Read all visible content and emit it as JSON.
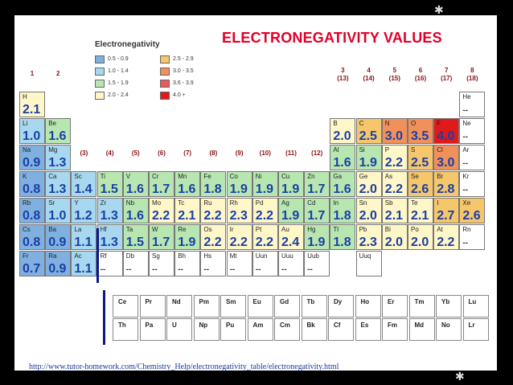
{
  "title": "ELECTRONEGATIVITY VALUES",
  "legend": {
    "title": "Electronegativity",
    "items": [
      {
        "label": "0.5 - 0.9",
        "color": "#7fb0e0"
      },
      {
        "label": "1.0 - 1.4",
        "color": "#a8d8f0"
      },
      {
        "label": "1.5 - 1.9",
        "color": "#b8e6b0"
      },
      {
        "label": "2.0 - 2.4",
        "color": "#fff7c8"
      },
      {
        "label": "2.5 - 2.9",
        "color": "#f6c66a"
      },
      {
        "label": "3.0 - 3.5",
        "color": "#f0905a"
      },
      {
        "label": "3.6 - 3.9",
        "color": "#e85a5a"
      },
      {
        "label": "4.0 +",
        "color": "#e01a1a"
      }
    ]
  },
  "groups_top": [
    "1",
    "2"
  ],
  "groups_main": [
    {
      "a": "3",
      "b": "(13)"
    },
    {
      "a": "4",
      "b": "(14)"
    },
    {
      "a": "5",
      "b": "(15)"
    },
    {
      "a": "6",
      "b": "(16)"
    },
    {
      "a": "7",
      "b": "(17)"
    },
    {
      "a": "8",
      "b": "(18)"
    }
  ],
  "groups_transition": [
    "(3)",
    "(4)",
    "(5)",
    "(6)",
    "(7)",
    "(8)",
    "(9)",
    "(10)",
    "(11)",
    "(12)"
  ],
  "elements": [
    {
      "s": "H",
      "v": "2.1",
      "r": 0,
      "c": 0,
      "k": 3
    },
    {
      "s": "He",
      "v": "--",
      "r": 0,
      "c": 17,
      "k": 9
    },
    {
      "s": "Li",
      "v": "1.0",
      "r": 1,
      "c": 0,
      "k": 1
    },
    {
      "s": "Be",
      "v": "1.6",
      "r": 1,
      "c": 1,
      "k": 2
    },
    {
      "s": "B",
      "v": "2.0",
      "r": 1,
      "c": 12,
      "k": 3
    },
    {
      "s": "C",
      "v": "2.5",
      "r": 1,
      "c": 13,
      "k": 4
    },
    {
      "s": "N",
      "v": "3.0",
      "r": 1,
      "c": 14,
      "k": 5
    },
    {
      "s": "O",
      "v": "3.5",
      "r": 1,
      "c": 15,
      "k": 5
    },
    {
      "s": "F",
      "v": "4.0",
      "r": 1,
      "c": 16,
      "k": 7
    },
    {
      "s": "Ne",
      "v": "--",
      "r": 1,
      "c": 17,
      "k": 9
    },
    {
      "s": "Na",
      "v": "0.9",
      "r": 2,
      "c": 0,
      "k": 0
    },
    {
      "s": "Mg",
      "v": "1.3",
      "r": 2,
      "c": 1,
      "k": 1
    },
    {
      "s": "Al",
      "v": "1.6",
      "r": 2,
      "c": 12,
      "k": 2
    },
    {
      "s": "Si",
      "v": "1.9",
      "r": 2,
      "c": 13,
      "k": 2
    },
    {
      "s": "P",
      "v": "2.2",
      "r": 2,
      "c": 14,
      "k": 3
    },
    {
      "s": "S",
      "v": "2.5",
      "r": 2,
      "c": 15,
      "k": 4
    },
    {
      "s": "Cl",
      "v": "3.0",
      "r": 2,
      "c": 16,
      "k": 5
    },
    {
      "s": "Ar",
      "v": "--",
      "r": 2,
      "c": 17,
      "k": 9
    },
    {
      "s": "K",
      "v": "0.8",
      "r": 3,
      "c": 0,
      "k": 0
    },
    {
      "s": "Ca",
      "v": "1.3",
      "r": 3,
      "c": 1,
      "k": 1
    },
    {
      "s": "Sc",
      "v": "1.4",
      "r": 3,
      "c": 2,
      "k": 1
    },
    {
      "s": "Ti",
      "v": "1.5",
      "r": 3,
      "c": 3,
      "k": 2
    },
    {
      "s": "V",
      "v": "1.6",
      "r": 3,
      "c": 4,
      "k": 2
    },
    {
      "s": "Cr",
      "v": "1.7",
      "r": 3,
      "c": 5,
      "k": 2
    },
    {
      "s": "Mn",
      "v": "1.6",
      "r": 3,
      "c": 6,
      "k": 2
    },
    {
      "s": "Fe",
      "v": "1.8",
      "r": 3,
      "c": 7,
      "k": 2
    },
    {
      "s": "Co",
      "v": "1.9",
      "r": 3,
      "c": 8,
      "k": 2
    },
    {
      "s": "Ni",
      "v": "1.9",
      "r": 3,
      "c": 9,
      "k": 2
    },
    {
      "s": "Cu",
      "v": "1.9",
      "r": 3,
      "c": 10,
      "k": 2
    },
    {
      "s": "Zn",
      "v": "1.7",
      "r": 3,
      "c": 11,
      "k": 2
    },
    {
      "s": "Ga",
      "v": "1.6",
      "r": 3,
      "c": 12,
      "k": 2
    },
    {
      "s": "Ge",
      "v": "2.0",
      "r": 3,
      "c": 13,
      "k": 3
    },
    {
      "s": "As",
      "v": "2.2",
      "r": 3,
      "c": 14,
      "k": 3
    },
    {
      "s": "Se",
      "v": "2.6",
      "r": 3,
      "c": 15,
      "k": 4
    },
    {
      "s": "Br",
      "v": "2.8",
      "r": 3,
      "c": 16,
      "k": 4
    },
    {
      "s": "Kr",
      "v": "--",
      "r": 3,
      "c": 17,
      "k": 9
    },
    {
      "s": "Rb",
      "v": "0.8",
      "r": 4,
      "c": 0,
      "k": 0
    },
    {
      "s": "Sr",
      "v": "1.0",
      "r": 4,
      "c": 1,
      "k": 1
    },
    {
      "s": "Y",
      "v": "1.2",
      "r": 4,
      "c": 2,
      "k": 1
    },
    {
      "s": "Zr",
      "v": "1.3",
      "r": 4,
      "c": 3,
      "k": 1
    },
    {
      "s": "Nb",
      "v": "1.6",
      "r": 4,
      "c": 4,
      "k": 2
    },
    {
      "s": "Mo",
      "v": "2.2",
      "r": 4,
      "c": 5,
      "k": 3
    },
    {
      "s": "Tc",
      "v": "2.1",
      "r": 4,
      "c": 6,
      "k": 3
    },
    {
      "s": "Ru",
      "v": "2.2",
      "r": 4,
      "c": 7,
      "k": 3
    },
    {
      "s": "Rh",
      "v": "2.3",
      "r": 4,
      "c": 8,
      "k": 3
    },
    {
      "s": "Pd",
      "v": "2.2",
      "r": 4,
      "c": 9,
      "k": 3
    },
    {
      "s": "Ag",
      "v": "1.9",
      "r": 4,
      "c": 10,
      "k": 2
    },
    {
      "s": "Cd",
      "v": "1.7",
      "r": 4,
      "c": 11,
      "k": 2
    },
    {
      "s": "In",
      "v": "1.8",
      "r": 4,
      "c": 12,
      "k": 2
    },
    {
      "s": "Sn",
      "v": "2.0",
      "r": 4,
      "c": 13,
      "k": 3
    },
    {
      "s": "Sb",
      "v": "2.1",
      "r": 4,
      "c": 14,
      "k": 3
    },
    {
      "s": "Te",
      "v": "2.1",
      "r": 4,
      "c": 15,
      "k": 3
    },
    {
      "s": "I",
      "v": "2.7",
      "r": 4,
      "c": 16,
      "k": 4
    },
    {
      "s": "Xe",
      "v": "2.6",
      "r": 4,
      "c": 17,
      "k": 4
    },
    {
      "s": "Cs",
      "v": "0.8",
      "r": 5,
      "c": 0,
      "k": 0
    },
    {
      "s": "Ba",
      "v": "0.9",
      "r": 5,
      "c": 1,
      "k": 0
    },
    {
      "s": "La",
      "v": "1.1",
      "r": 5,
      "c": 2,
      "k": 1
    },
    {
      "s": "Hf",
      "v": "1.3",
      "r": 5,
      "c": 3,
      "k": 1
    },
    {
      "s": "Ta",
      "v": "1.5",
      "r": 5,
      "c": 4,
      "k": 2
    },
    {
      "s": "W",
      "v": "1.7",
      "r": 5,
      "c": 5,
      "k": 2
    },
    {
      "s": "Re",
      "v": "1.9",
      "r": 5,
      "c": 6,
      "k": 2
    },
    {
      "s": "Os",
      "v": "2.2",
      "r": 5,
      "c": 7,
      "k": 3
    },
    {
      "s": "Ir",
      "v": "2.2",
      "r": 5,
      "c": 8,
      "k": 3
    },
    {
      "s": "Pt",
      "v": "2.2",
      "r": 5,
      "c": 9,
      "k": 3
    },
    {
      "s": "Au",
      "v": "2.4",
      "r": 5,
      "c": 10,
      "k": 3
    },
    {
      "s": "Hg",
      "v": "1.9",
      "r": 5,
      "c": 11,
      "k": 2
    },
    {
      "s": "Tl",
      "v": "1.8",
      "r": 5,
      "c": 12,
      "k": 2
    },
    {
      "s": "Pb",
      "v": "2.3",
      "r": 5,
      "c": 13,
      "k": 3
    },
    {
      "s": "Bi",
      "v": "2.0",
      "r": 5,
      "c": 14,
      "k": 3
    },
    {
      "s": "Po",
      "v": "2.0",
      "r": 5,
      "c": 15,
      "k": 3
    },
    {
      "s": "At",
      "v": "2.2",
      "r": 5,
      "c": 16,
      "k": 3
    },
    {
      "s": "Rn",
      "v": "--",
      "r": 5,
      "c": 17,
      "k": 9
    },
    {
      "s": "Fr",
      "v": "0.7",
      "r": 6,
      "c": 0,
      "k": 0
    },
    {
      "s": "Ra",
      "v": "0.9",
      "r": 6,
      "c": 1,
      "k": 0
    },
    {
      "s": "Ac",
      "v": "1.1",
      "r": 6,
      "c": 2,
      "k": 1
    },
    {
      "s": "Rf",
      "v": "--",
      "r": 6,
      "c": 3,
      "k": 9
    },
    {
      "s": "Db",
      "v": "--",
      "r": 6,
      "c": 4,
      "k": 9
    },
    {
      "s": "Sg",
      "v": "--",
      "r": 6,
      "c": 5,
      "k": 9
    },
    {
      "s": "Bh",
      "v": "--",
      "r": 6,
      "c": 6,
      "k": 9
    },
    {
      "s": "Hs",
      "v": "--",
      "r": 6,
      "c": 7,
      "k": 9
    },
    {
      "s": "Mt",
      "v": "--",
      "r": 6,
      "c": 8,
      "k": 9
    },
    {
      "s": "Uun",
      "v": "--",
      "r": 6,
      "c": 9,
      "k": 9
    },
    {
      "s": "Uuu",
      "v": "--",
      "r": 6,
      "c": 10,
      "k": 9
    },
    {
      "s": "Uub",
      "v": "--",
      "r": 6,
      "c": 11,
      "k": 9
    },
    {
      "s": "Uuq",
      "v": "",
      "r": 6,
      "c": 13,
      "k": 9
    }
  ],
  "lanthanides": [
    "Ce",
    "Pr",
    "Nd",
    "Pm",
    "Sm",
    "Eu",
    "Gd",
    "Tb",
    "Dy",
    "Ho",
    "Er",
    "Tm",
    "Yb",
    "Lu"
  ],
  "actinides": [
    "Th",
    "Pa",
    "U",
    "Np",
    "Pu",
    "Am",
    "Cm",
    "Bk",
    "Cf",
    "Es",
    "Fm",
    "Md",
    "No",
    "Lr"
  ],
  "source_url": "http://www.tutor-homework.com/Chemistry_Help/electronegativity_table/electronegativity.html"
}
